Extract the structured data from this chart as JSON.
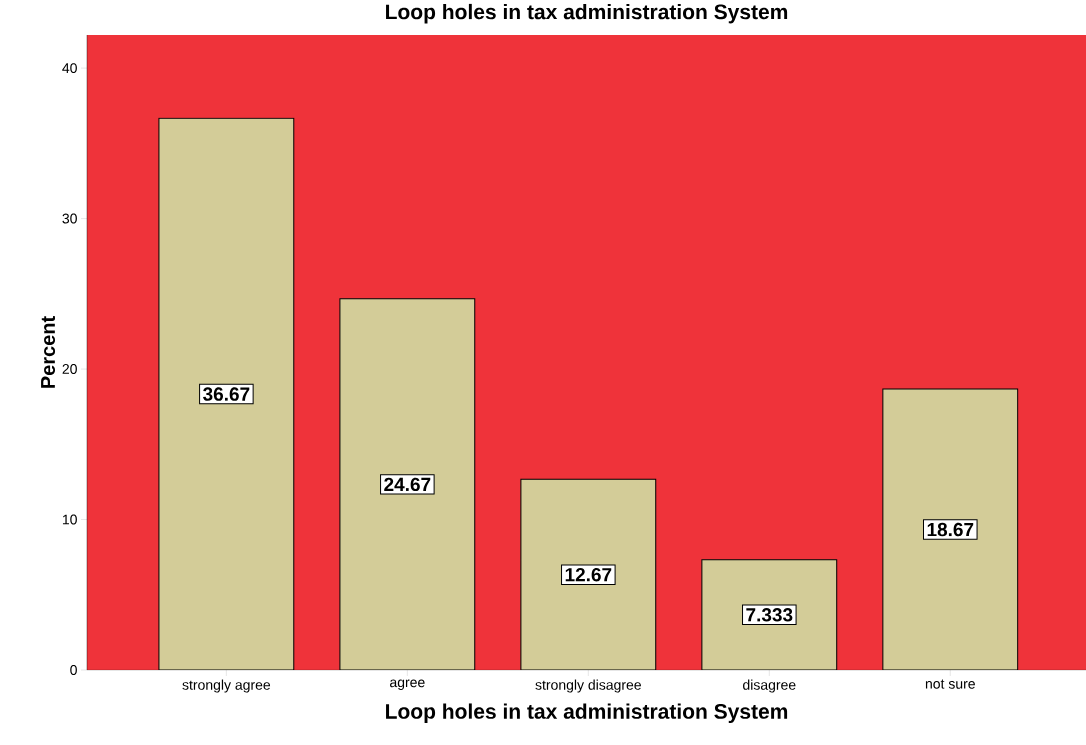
{
  "chart_data": {
    "type": "bar",
    "title": "Loop holes in tax administration System",
    "xlabel": "Loop holes in tax administration System",
    "ylabel": "Percent",
    "categories": [
      "strongly agree",
      "agree",
      "strongly disagree",
      "disagree",
      "not sure"
    ],
    "values": [
      36.67,
      24.67,
      12.67,
      7.333,
      18.67
    ],
    "color": "#d3cc98",
    "ylim": [
      0,
      42.2
    ],
    "yticks": [
      0,
      10,
      20,
      30,
      40
    ],
    "data_labels": true
  }
}
